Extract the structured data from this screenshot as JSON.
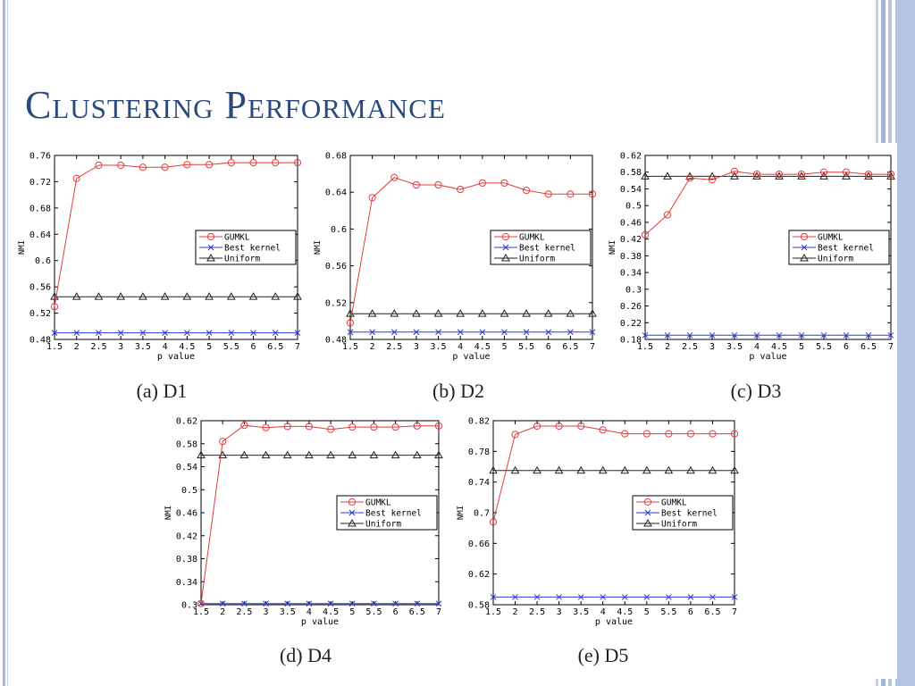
{
  "slide": {
    "title": "Clustering Performance"
  },
  "colors": {
    "gumkl": "#e23b3b",
    "best_kernel": "#2b3bd6",
    "uniform": "#222222",
    "title": "#2a4a7c"
  },
  "chart_data": [
    {
      "type": "line",
      "caption": "(a) D1",
      "xlabel": "p value",
      "ylabel": "NMI",
      "x": [
        1.5,
        2,
        2.5,
        3,
        3.5,
        4,
        4.5,
        5,
        5.5,
        6,
        6.5,
        7
      ],
      "xticks": [
        "1.5",
        "2",
        "2.5",
        "3",
        "3.5",
        "4",
        "4.5",
        "5",
        "5.5",
        "6",
        "6.5",
        "7"
      ],
      "ylim": [
        0.48,
        0.76
      ],
      "yticks": [
        "0.48",
        "0.52",
        "0.56",
        "0.6",
        "0.64",
        "0.68",
        "0.72",
        "0.76"
      ],
      "legend": "center-right",
      "series": [
        {
          "name": "GUMKL",
          "marker": "circle",
          "values": [
            0.53,
            0.725,
            0.745,
            0.745,
            0.742,
            0.742,
            0.746,
            0.746,
            0.749,
            0.749,
            0.749,
            0.749
          ]
        },
        {
          "name": "Best kernel",
          "marker": "x",
          "values": [
            0.49,
            0.49,
            0.49,
            0.49,
            0.49,
            0.49,
            0.49,
            0.49,
            0.49,
            0.49,
            0.49,
            0.49
          ]
        },
        {
          "name": "Uniform",
          "marker": "triangle",
          "values": [
            0.545,
            0.545,
            0.545,
            0.545,
            0.545,
            0.545,
            0.545,
            0.545,
            0.545,
            0.545,
            0.545,
            0.545
          ]
        }
      ]
    },
    {
      "type": "line",
      "caption": "(b) D2",
      "xlabel": "p value",
      "ylabel": "NMI",
      "x": [
        1.5,
        2,
        2.5,
        3,
        3.5,
        4,
        4.5,
        5,
        5.5,
        6,
        6.5,
        7
      ],
      "xticks": [
        "1.5",
        "2",
        "2.5",
        "3",
        "3.5",
        "4",
        "4.5",
        "5",
        "5.5",
        "6",
        "6.5",
        "7"
      ],
      "ylim": [
        0.48,
        0.68
      ],
      "yticks": [
        "0.48",
        "0.52",
        "0.56",
        "0.6",
        "0.64",
        "0.68"
      ],
      "legend": "center-right",
      "series": [
        {
          "name": "GUMKL",
          "marker": "circle",
          "values": [
            0.498,
            0.634,
            0.656,
            0.648,
            0.648,
            0.643,
            0.65,
            0.65,
            0.642,
            0.638,
            0.638,
            0.638
          ]
        },
        {
          "name": "Best kernel",
          "marker": "x",
          "values": [
            0.488,
            0.488,
            0.488,
            0.488,
            0.488,
            0.488,
            0.488,
            0.488,
            0.488,
            0.488,
            0.488,
            0.488
          ]
        },
        {
          "name": "Uniform",
          "marker": "triangle",
          "values": [
            0.508,
            0.508,
            0.508,
            0.508,
            0.508,
            0.508,
            0.508,
            0.508,
            0.508,
            0.508,
            0.508,
            0.508
          ]
        }
      ]
    },
    {
      "type": "line",
      "caption": "(c) D3",
      "xlabel": "p value",
      "ylabel": "NMI",
      "x": [
        1.5,
        2,
        2.5,
        3,
        3.5,
        4,
        4.5,
        5,
        5.5,
        6,
        6.5,
        7
      ],
      "xticks": [
        "1.5",
        "2",
        "2.5",
        "3",
        "3.5",
        "4",
        "4.5",
        "5",
        "5.5",
        "6",
        "6.5",
        "7"
      ],
      "ylim": [
        0.18,
        0.62
      ],
      "yticks": [
        "0.18",
        "0.22",
        "0.26",
        "0.3",
        "0.34",
        "0.38",
        "0.42",
        "0.46",
        "0.5",
        "0.54",
        "0.58",
        "0.62"
      ],
      "legend": "center-right",
      "series": [
        {
          "name": "GUMKL",
          "marker": "circle",
          "values": [
            0.43,
            0.478,
            0.566,
            0.562,
            0.582,
            0.575,
            0.575,
            0.575,
            0.58,
            0.58,
            0.575,
            0.575
          ]
        },
        {
          "name": "Best kernel",
          "marker": "x",
          "values": [
            0.19,
            0.19,
            0.19,
            0.19,
            0.19,
            0.19,
            0.19,
            0.19,
            0.19,
            0.19,
            0.19,
            0.19
          ]
        },
        {
          "name": "Uniform",
          "marker": "triangle",
          "values": [
            0.57,
            0.57,
            0.57,
            0.57,
            0.57,
            0.57,
            0.57,
            0.57,
            0.57,
            0.57,
            0.57,
            0.57
          ]
        }
      ]
    },
    {
      "type": "line",
      "caption": "(d) D4",
      "xlabel": "p value",
      "ylabel": "NMI",
      "x": [
        1.5,
        2,
        2.5,
        3,
        3.5,
        4,
        4.5,
        5,
        5.5,
        6,
        6.5,
        7
      ],
      "xticks": [
        "1.5",
        "2",
        "2.5",
        "3",
        "3.5",
        "4",
        "4.5",
        "5",
        "5.5",
        "6",
        "6.5",
        "7"
      ],
      "ylim": [
        0.3,
        0.62
      ],
      "yticks": [
        "0.3",
        "0.34",
        "0.38",
        "0.42",
        "0.46",
        "0.5",
        "0.54",
        "0.58",
        "0.62"
      ],
      "legend": "center-right",
      "series": [
        {
          "name": "GUMKL",
          "marker": "circle",
          "values": [
            0.302,
            0.584,
            0.612,
            0.608,
            0.61,
            0.61,
            0.605,
            0.609,
            0.609,
            0.609,
            0.611,
            0.611
          ]
        },
        {
          "name": "Best kernel",
          "marker": "x",
          "values": [
            0.302,
            0.302,
            0.302,
            0.302,
            0.302,
            0.302,
            0.302,
            0.302,
            0.302,
            0.302,
            0.302,
            0.302
          ]
        },
        {
          "name": "Uniform",
          "marker": "triangle",
          "values": [
            0.56,
            0.56,
            0.56,
            0.56,
            0.56,
            0.56,
            0.56,
            0.56,
            0.56,
            0.56,
            0.56,
            0.56
          ]
        }
      ]
    },
    {
      "type": "line",
      "caption": "(e) D5",
      "xlabel": "p value",
      "ylabel": "NMI",
      "x": [
        1.5,
        2,
        2.5,
        3,
        3.5,
        4,
        4.5,
        5,
        5.5,
        6,
        6.5,
        7
      ],
      "xticks": [
        "1.5",
        "2",
        "2.5",
        "3",
        "3.5",
        "4",
        "4.5",
        "5",
        "5.5",
        "6",
        "6.5",
        "7"
      ],
      "ylim": [
        0.58,
        0.82
      ],
      "yticks": [
        "0.58",
        "0.62",
        "0.66",
        "0.7",
        "0.74",
        "0.78",
        "0.82"
      ],
      "legend": "center-right",
      "series": [
        {
          "name": "GUMKL",
          "marker": "circle",
          "values": [
            0.688,
            0.802,
            0.813,
            0.813,
            0.813,
            0.808,
            0.803,
            0.803,
            0.803,
            0.803,
            0.803,
            0.803
          ]
        },
        {
          "name": "Best kernel",
          "marker": "x",
          "values": [
            0.59,
            0.59,
            0.59,
            0.59,
            0.59,
            0.59,
            0.59,
            0.59,
            0.59,
            0.59,
            0.59,
            0.59
          ]
        },
        {
          "name": "Uniform",
          "marker": "triangle",
          "values": [
            0.755,
            0.755,
            0.755,
            0.755,
            0.755,
            0.755,
            0.755,
            0.755,
            0.755,
            0.755,
            0.755,
            0.755
          ]
        }
      ]
    }
  ]
}
